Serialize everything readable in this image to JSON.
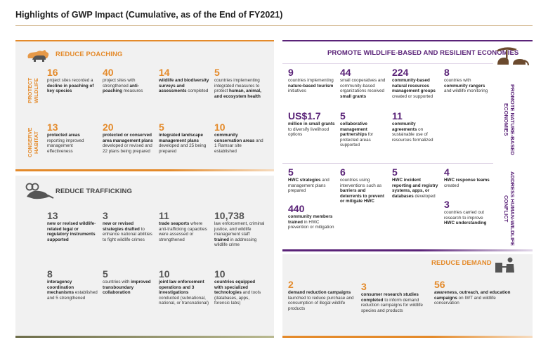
{
  "title": "Highlights of GWP Impact (Cumulative, as of the End of FY2021)",
  "colors": {
    "orange": "#e48a2a",
    "purple": "#5a2378",
    "gray": "#555555",
    "panel": "#f1f1f1"
  },
  "poaching": {
    "heading": "REDUCE POACHING",
    "label_protect": "PROTECT WILDLIFE",
    "label_conserve": "CONSERVE HABITAT",
    "row1": [
      {
        "num": "16",
        "pre": "project sites recorded a ",
        "bold": "decline in poaching of key species",
        "post": ""
      },
      {
        "num": "40",
        "pre": "project sites with strengthened ",
        "bold": "anti-poaching",
        "post": " measures"
      },
      {
        "num": "14",
        "pre": "",
        "bold": "wildlife and biodiversity surveys and assessments",
        "post": " completed"
      },
      {
        "num": "5",
        "pre": "countries implementing integrated measures to protect ",
        "bold": "human, animal, and ecosystem health",
        "post": ""
      }
    ],
    "row2": [
      {
        "num": "13",
        "pre": "",
        "bold": "protected areas",
        "post": " reporting improved management effectiveness"
      },
      {
        "num": "20",
        "pre": "",
        "bold": "protected or conserved area management plans",
        "post": " developed or revised and 22 plans being prepared"
      },
      {
        "num": "5",
        "pre": "",
        "bold": "integrated landscape management plans",
        "post": " developed and 25 being prepared"
      },
      {
        "num": "10",
        "pre": "",
        "bold": "community conservation areas",
        "post": " and 1 Ramsar site established"
      }
    ]
  },
  "trafficking": {
    "heading": "REDUCE TRAFFICKING",
    "row1": [
      {
        "num": "13",
        "pre": "",
        "bold": "new or revised wildlife-related legal or regulatory instruments supported",
        "post": ""
      },
      {
        "num": "3",
        "pre": "",
        "bold": "new or revised strategies drafted",
        "post": " to enhance national abilities to fight wildlife crimes"
      },
      {
        "num": "11",
        "pre": "",
        "bold": "trade seaports",
        "post": " where anti-trafficking capacities were assessed or strengthened"
      },
      {
        "num": "10,738",
        "pre": "law enforcement, criminal justice, and wildlife management staff ",
        "bold": "trained",
        "post": " in addressing wildlife crime"
      }
    ],
    "row2": [
      {
        "num": "8",
        "pre": "",
        "bold": "interagency coordination mechanisms",
        "post": " established and 5 strengthened"
      },
      {
        "num": "5",
        "pre": "countries with ",
        "bold": "improved transboundary collaboration",
        "post": ""
      },
      {
        "num": "10",
        "pre": "",
        "bold": "joint law enforcement operations and 3 investigations",
        "post": " conducted (subnational, national, or transnational)"
      },
      {
        "num": "10",
        "pre": "",
        "bold": "countries equipped with specialized technologies",
        "post": " and tools (databases, apps, forensic labs)"
      }
    ]
  },
  "economies": {
    "heading": "PROMOTE WILDLIFE-BASED AND RESILIENT ECONOMIES",
    "side_label": "PROMOTE NATURE-BASED ECONOMIES",
    "row1": [
      {
        "num": "9",
        "pre": "countries implementing ",
        "bold": "nature-based tourism",
        "post": " initiatives"
      },
      {
        "num": "44",
        "pre": "small cooperatives and community-based organizations received ",
        "bold": "small grants",
        "post": ""
      },
      {
        "num": "224",
        "pre": "",
        "bold": "community-based natural resources management groups",
        "post": " created or supported"
      },
      {
        "num": "8",
        "pre": "countries with ",
        "bold": "community rangers",
        "post": " and wildlife monitoring"
      }
    ],
    "row2": [
      {
        "num": "US$1.7",
        "pre": "",
        "bold": "million in small grants",
        "post": " to diversify livelihood options"
      },
      {
        "num": "5",
        "pre": "",
        "bold": "collaborative management partnerships",
        "post": " for protected areas supported"
      },
      {
        "num": "11",
        "pre": "",
        "bold": "community agreements",
        "post": " on sustainable use of resources formalized"
      }
    ]
  },
  "conflict": {
    "side_label": "ADDRESS HUMAN-WILDLIFE CONFLICT",
    "items": [
      {
        "num": "5",
        "pre": "",
        "bold": "HWC strategies",
        "post": " and management plans prepared"
      },
      {
        "num": "6",
        "pre": "countries using interventions such as ",
        "bold": "barriers and deterrents to prevent or mitigate HWC",
        "post": ""
      },
      {
        "num": "5",
        "pre": "",
        "bold": "HWC incident reporting and registry systems, apps, or databases",
        "post": " developed"
      },
      {
        "num": "4",
        "pre": "",
        "bold": "HWC response teams",
        "post": " created"
      },
      {
        "num": "440",
        "pre": "",
        "bold": "community members trained",
        "post": " in HWC prevention or mitigation"
      },
      {
        "num": "3",
        "pre": "countries carried out research to improve ",
        "bold": "HWC understanding",
        "post": ""
      }
    ]
  },
  "demand": {
    "heading": "REDUCE DEMAND",
    "items": [
      {
        "num": "2",
        "pre": "",
        "bold": "demand reduction campaigns",
        "post": " launched to reduce purchase and consumption of illegal wildlife products"
      },
      {
        "num": "3",
        "pre": "",
        "bold": "consumer research studies completed",
        "post": " to inform demand reduction campaigns for wildlife species and products"
      },
      {
        "num": "56",
        "pre": "",
        "bold": "awareness, outreach, and education campaigns",
        "post": " on IWT and wildlife conservation"
      }
    ]
  }
}
